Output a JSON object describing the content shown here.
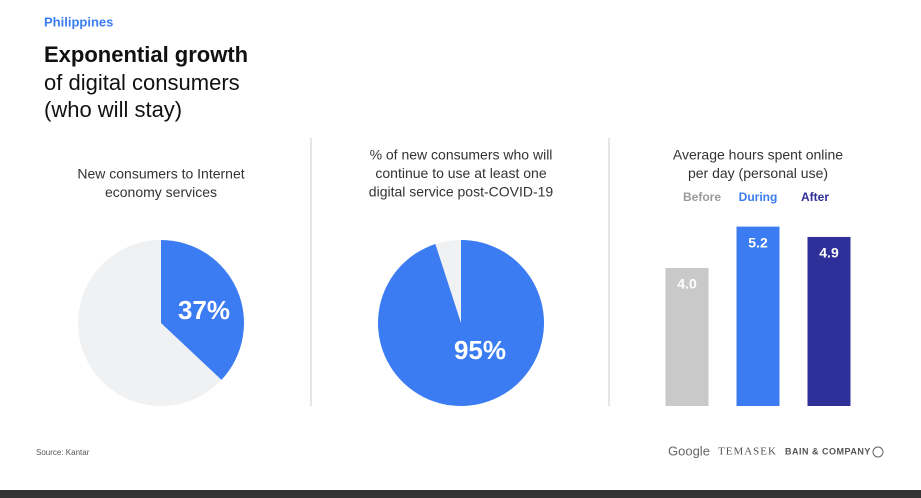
{
  "header": {
    "country": "Philippines",
    "title_bold": "Exponential growth",
    "title_lines": [
      "of digital consumers",
      "(who will stay)"
    ]
  },
  "chart_data": [
    {
      "type": "pie",
      "title": [
        "New consumers to Internet",
        "economy services"
      ],
      "values": [
        37
      ],
      "value_labels": [
        "37%"
      ],
      "color": "#3b7cf2",
      "rest_color": "#f0f1f3"
    },
    {
      "type": "pie",
      "title": [
        "% of new consumers who will",
        "continue to use at least one",
        "digital service post-COVID-19"
      ],
      "values": [
        95
      ],
      "value_labels": [
        "95%"
      ],
      "color": "#3b7cf2",
      "rest_color": "#f0f1f3"
    },
    {
      "type": "bar",
      "title": [
        "Average hours spent online",
        "per day (personal use)"
      ],
      "categories": [
        "Before",
        "During",
        "After"
      ],
      "values": [
        4.0,
        5.2,
        4.9
      ],
      "value_labels": [
        "4.0",
        "5.2",
        "4.9"
      ],
      "colors": [
        "#c9c9c9",
        "#3b7cf2",
        "#2f2f9a"
      ],
      "label_colors": [
        "#9a9a9a",
        "#3b7cf2",
        "#2f2f9a"
      ]
    }
  ],
  "footer": {
    "source": "Source: Kantar",
    "logos": [
      "Google",
      "TEMASEK",
      "BAIN & COMPANY"
    ]
  }
}
